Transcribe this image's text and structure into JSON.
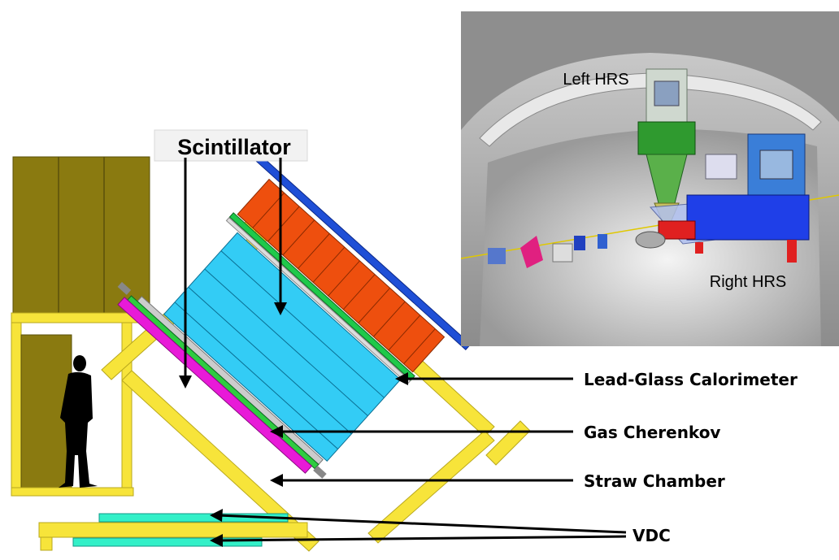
{
  "labels": {
    "scintillator": "Scintillator",
    "lead_glass": "Lead-Glass Calorimeter",
    "gas_cherenkov": "Gas Cherenkov",
    "straw_chamber": "Straw Chamber",
    "vdc": "VDC",
    "left_hrs": "Left HRS",
    "right_hrs": "Right HRS"
  },
  "colors": {
    "olive_shed": "#8a7a10",
    "yellow_frame": "#f7e43a",
    "cherenkov": "#33ccf5",
    "calorimeter": "#ee4f0e",
    "blue_bar": "#1f4fd6",
    "magenta_bar": "#e81ad8",
    "green_bar": "#2ecc40",
    "vdc": "#33f0c8",
    "hall_bg": "#bdbdbd"
  }
}
